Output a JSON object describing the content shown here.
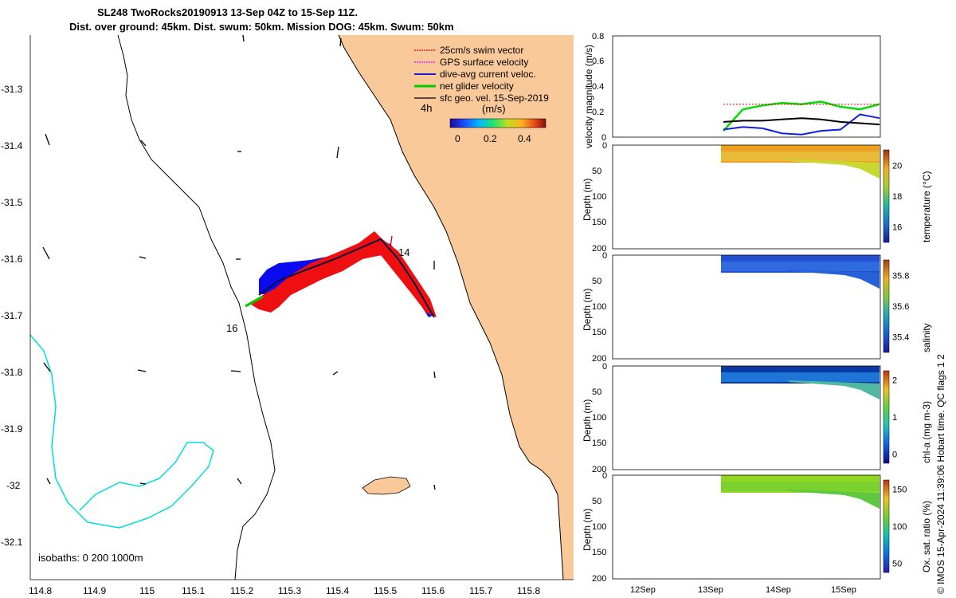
{
  "title": {
    "line1": "SL248 TwoRocks20190913 13-Sep 04Z to 15-Sep 11Z.",
    "line2": "Dist. over ground: 45km. Dist. swum: 50km. Mission DOG: 45km. Swum: 50km"
  },
  "map": {
    "x_ticks": [
      "114.8",
      "114.9",
      "115",
      "115.1",
      "115.2",
      "115.3",
      "115.4",
      "115.5",
      "115.6",
      "115.7",
      "115.8"
    ],
    "y_ticks": [
      "-31.3",
      "-31.4",
      "-31.5",
      "-31.6",
      "-31.7",
      "-31.8",
      "-31.9",
      "-32",
      "-32.1"
    ],
    "isobaths_label": "isobaths: 0   200  1000m",
    "labels": {
      "time_4h": "4h",
      "day14": "14",
      "day16": "16"
    },
    "legend": [
      {
        "label": "25cm/s swim vector",
        "color": "#e00000"
      },
      {
        "label": "GPS surface velocity",
        "color": "#ff00ff"
      },
      {
        "label": "dive-avg current veloc.",
        "color": "#0000dd"
      },
      {
        "label": "net glider velocity",
        "color": "#00cc00"
      },
      {
        "label": "sfc geo. vel. 15-Sep-2019",
        "color": "#000000"
      }
    ],
    "colorbar": {
      "unit": "(m/s)",
      "ticks": [
        "0",
        "0.2",
        "0.4"
      ]
    }
  },
  "chart_data": [
    {
      "type": "line",
      "title": "velocity magnitude",
      "ylabel": "velocity magnitude (m/s)",
      "ylim": [
        0,
        0.8
      ],
      "y_ticks": [
        "0",
        "0.2",
        "0.4",
        "0.6",
        "0.8"
      ],
      "x_ticks": [
        "12Sep",
        "13Sep",
        "14Sep",
        "15Sep"
      ],
      "series": [
        {
          "name": "net glider velocity",
          "color": "#00dd00",
          "values": [
            0.05,
            0.22,
            0.25,
            0.27,
            0.26,
            0.28,
            0.24,
            0.22,
            0.26
          ]
        },
        {
          "name": "dive-avg current veloc.",
          "color": "#1020e0",
          "values": [
            0.06,
            0.08,
            0.07,
            0.03,
            0.02,
            0.05,
            0.06,
            0.18,
            0.15
          ]
        },
        {
          "name": "sfc geo. vel.",
          "color": "#000000",
          "values": [
            0.12,
            0.13,
            0.13,
            0.14,
            0.15,
            0.14,
            0.12,
            0.11,
            0.1
          ]
        },
        {
          "name": "swim vector",
          "color": "#e00000",
          "values": [
            0.26,
            0.26,
            0.26,
            0.26,
            0.26,
            0.26,
            0.26,
            0.26,
            0.26
          ]
        }
      ]
    },
    {
      "type": "heatmap",
      "variable": "temperature",
      "ylabel": "Depth (m)",
      "y_ticks": [
        "0",
        "50",
        "100",
        "150",
        "200"
      ],
      "colorbar_label": "temperature (°C)",
      "colorbar_ticks": [
        "16",
        "18",
        "20"
      ],
      "crange": [
        15,
        22
      ]
    },
    {
      "type": "heatmap",
      "variable": "salinity",
      "ylabel": "Depth (m)",
      "y_ticks": [
        "0",
        "50",
        "100",
        "150",
        "200"
      ],
      "colorbar_label": "salinity",
      "colorbar_ticks": [
        "35.4",
        "35.6",
        "35.8"
      ],
      "crange": [
        35.35,
        35.9
      ]
    },
    {
      "type": "heatmap",
      "variable": "chl-a",
      "ylabel": "Depth (m)",
      "y_ticks": [
        "0",
        "50",
        "100",
        "150",
        "200"
      ],
      "colorbar_label": "chl-a (mg m-3)",
      "colorbar_ticks": [
        "0",
        "1",
        "2"
      ],
      "crange": [
        0,
        2
      ]
    },
    {
      "type": "heatmap",
      "variable": "oxygen",
      "ylabel": "Depth (m)",
      "y_ticks": [
        "0",
        "50",
        "100",
        "150",
        "200"
      ],
      "colorbar_label": "Ox. sat. ratio (%)",
      "colorbar_ticks": [
        "50",
        "100",
        "150"
      ],
      "crange": [
        25,
        175
      ]
    }
  ],
  "footer": "© IMOS 15-Apr-2024 11:39:06 Hobart time. QC flags 1  2",
  "time_axis": [
    "12Sep",
    "13Sep",
    "14Sep",
    "15Sep"
  ]
}
